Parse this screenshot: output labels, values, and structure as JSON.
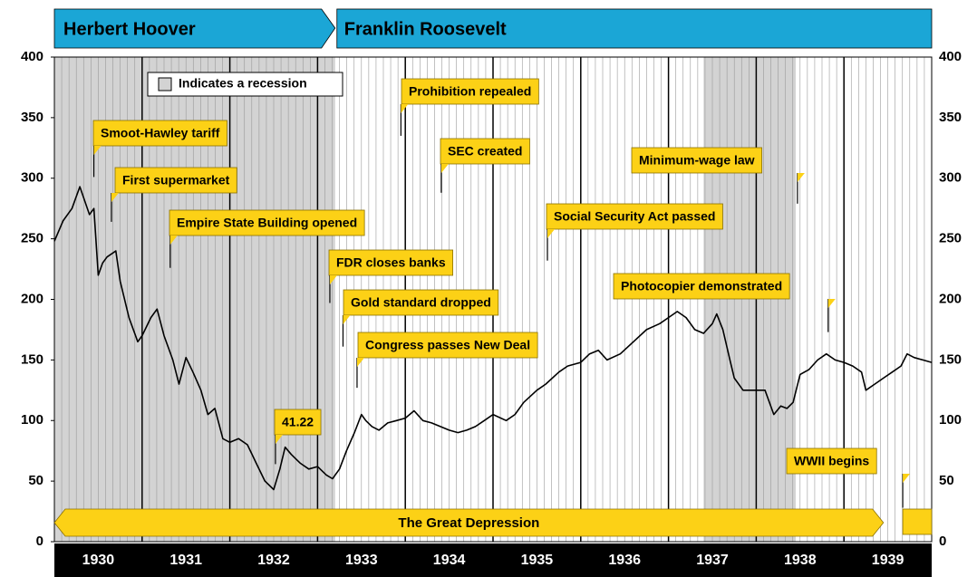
{
  "chart_data": {
    "type": "line",
    "color": "#000000",
    "xlim": [
      1930,
      1940
    ],
    "ylim": [
      0,
      400
    ],
    "yticks": [
      0,
      50,
      100,
      150,
      200,
      250,
      300,
      350,
      400
    ],
    "xticks": [
      {
        "value": 1930.5,
        "label": "1930"
      },
      {
        "value": 1931.5,
        "label": "1931"
      },
      {
        "value": 1932.5,
        "label": "1932"
      },
      {
        "value": 1933.5,
        "label": "1933"
      },
      {
        "value": 1934.5,
        "label": "1934"
      },
      {
        "value": 1935.5,
        "label": "1935"
      },
      {
        "value": 1936.5,
        "label": "1936"
      },
      {
        "value": 1937.5,
        "label": "1937"
      },
      {
        "value": 1938.5,
        "label": "1938"
      },
      {
        "value": 1939.5,
        "label": "1939"
      }
    ],
    "recession_label": "Indicates a recession",
    "recessions": [
      [
        1930,
        1933.2
      ],
      [
        1937.4,
        1938.45
      ]
    ],
    "presidents": [
      {
        "name": "Herbert Hoover",
        "start": 1930,
        "end": 1933.2
      },
      {
        "name": "Franklin Roosevelt",
        "start": 1933.2,
        "end": 1940
      }
    ],
    "periods": [
      {
        "name": "The Great Depression",
        "start": 1930,
        "end": 1939.45
      },
      {
        "start": 1939.67,
        "end": 1940
      }
    ],
    "annotations": [
      {
        "text": "Smoot-Hawley tariff",
        "x": 1930.45,
        "y": 301
      },
      {
        "text": "First supermarket",
        "x": 1930.65,
        "y": 264
      },
      {
        "text": "Empire State Building opened",
        "x": 1931.32,
        "y": 226
      },
      {
        "text": "FDR closes banks",
        "x": 1933.14,
        "y": 197
      },
      {
        "text": "Gold standard dropped",
        "x": 1933.29,
        "y": 161
      },
      {
        "text": "Congress passes New Deal",
        "x": 1933.45,
        "y": 127
      },
      {
        "text": "Prohibition repealed",
        "x": 1933.95,
        "y": 335
      },
      {
        "text": "SEC created",
        "x": 1934.41,
        "y": 288
      },
      {
        "text": "Social Security Act passed",
        "x": 1935.62,
        "y": 232
      },
      {
        "text": "Minimum-wage law",
        "x": 1938.47,
        "y": 279
      },
      {
        "text": "Photocopier demonstrated",
        "x": 1938.82,
        "y": 173
      },
      {
        "text": "41.22",
        "x": 1932.52,
        "y": 64
      },
      {
        "text": "WWII begins",
        "x": 1939.67,
        "y": 28
      }
    ],
    "x": [
      1930.0,
      1930.1,
      1930.2,
      1930.29,
      1930.4,
      1930.45,
      1930.5,
      1930.55,
      1930.6,
      1930.7,
      1930.75,
      1930.85,
      1930.95,
      1931.0,
      1931.1,
      1931.17,
      1931.25,
      1931.35,
      1931.42,
      1931.5,
      1931.58,
      1931.67,
      1931.75,
      1931.83,
      1931.92,
      1932.0,
      1932.1,
      1932.2,
      1932.3,
      1932.4,
      1932.5,
      1932.57,
      1932.63,
      1932.7,
      1932.8,
      1932.9,
      1933.0,
      1933.1,
      1933.17,
      1933.25,
      1933.33,
      1933.42,
      1933.5,
      1933.55,
      1933.62,
      1933.7,
      1933.8,
      1933.9,
      1934.0,
      1934.1,
      1934.2,
      1934.3,
      1934.4,
      1934.5,
      1934.6,
      1934.7,
      1934.8,
      1934.9,
      1935.0,
      1935.15,
      1935.25,
      1935.35,
      1935.5,
      1935.6,
      1935.75,
      1935.85,
      1936.0,
      1936.1,
      1936.2,
      1936.3,
      1936.45,
      1936.6,
      1936.75,
      1936.9,
      1937.0,
      1937.1,
      1937.2,
      1937.3,
      1937.4,
      1937.5,
      1937.55,
      1937.62,
      1937.7,
      1937.75,
      1937.85,
      1937.95,
      1938.0,
      1938.1,
      1938.2,
      1938.28,
      1938.35,
      1938.42,
      1938.5,
      1938.6,
      1938.7,
      1938.8,
      1938.9,
      1939.0,
      1939.1,
      1939.2,
      1939.25,
      1939.35,
      1939.45,
      1939.55,
      1939.65,
      1939.72,
      1939.8,
      1939.9,
      1940.0
    ],
    "values": [
      248,
      265,
      275,
      293,
      270,
      275,
      220,
      230,
      235,
      240,
      215,
      185,
      165,
      170,
      185,
      192,
      170,
      150,
      130,
      152,
      140,
      125,
      105,
      110,
      85,
      82,
      85,
      80,
      65,
      50,
      43,
      60,
      78,
      72,
      65,
      60,
      62,
      55,
      52,
      60,
      75,
      90,
      105,
      100,
      95,
      92,
      98,
      100,
      102,
      108,
      100,
      98,
      95,
      92,
      90,
      92,
      95,
      100,
      105,
      100,
      105,
      115,
      125,
      130,
      140,
      145,
      148,
      155,
      158,
      150,
      155,
      165,
      175,
      180,
      185,
      190,
      185,
      175,
      172,
      180,
      188,
      175,
      150,
      135,
      125,
      125,
      125,
      125,
      105,
      112,
      110,
      115,
      138,
      142,
      150,
      155,
      150,
      148,
      145,
      140,
      125,
      130,
      135,
      140,
      145,
      155,
      152,
      150,
      148
    ]
  }
}
